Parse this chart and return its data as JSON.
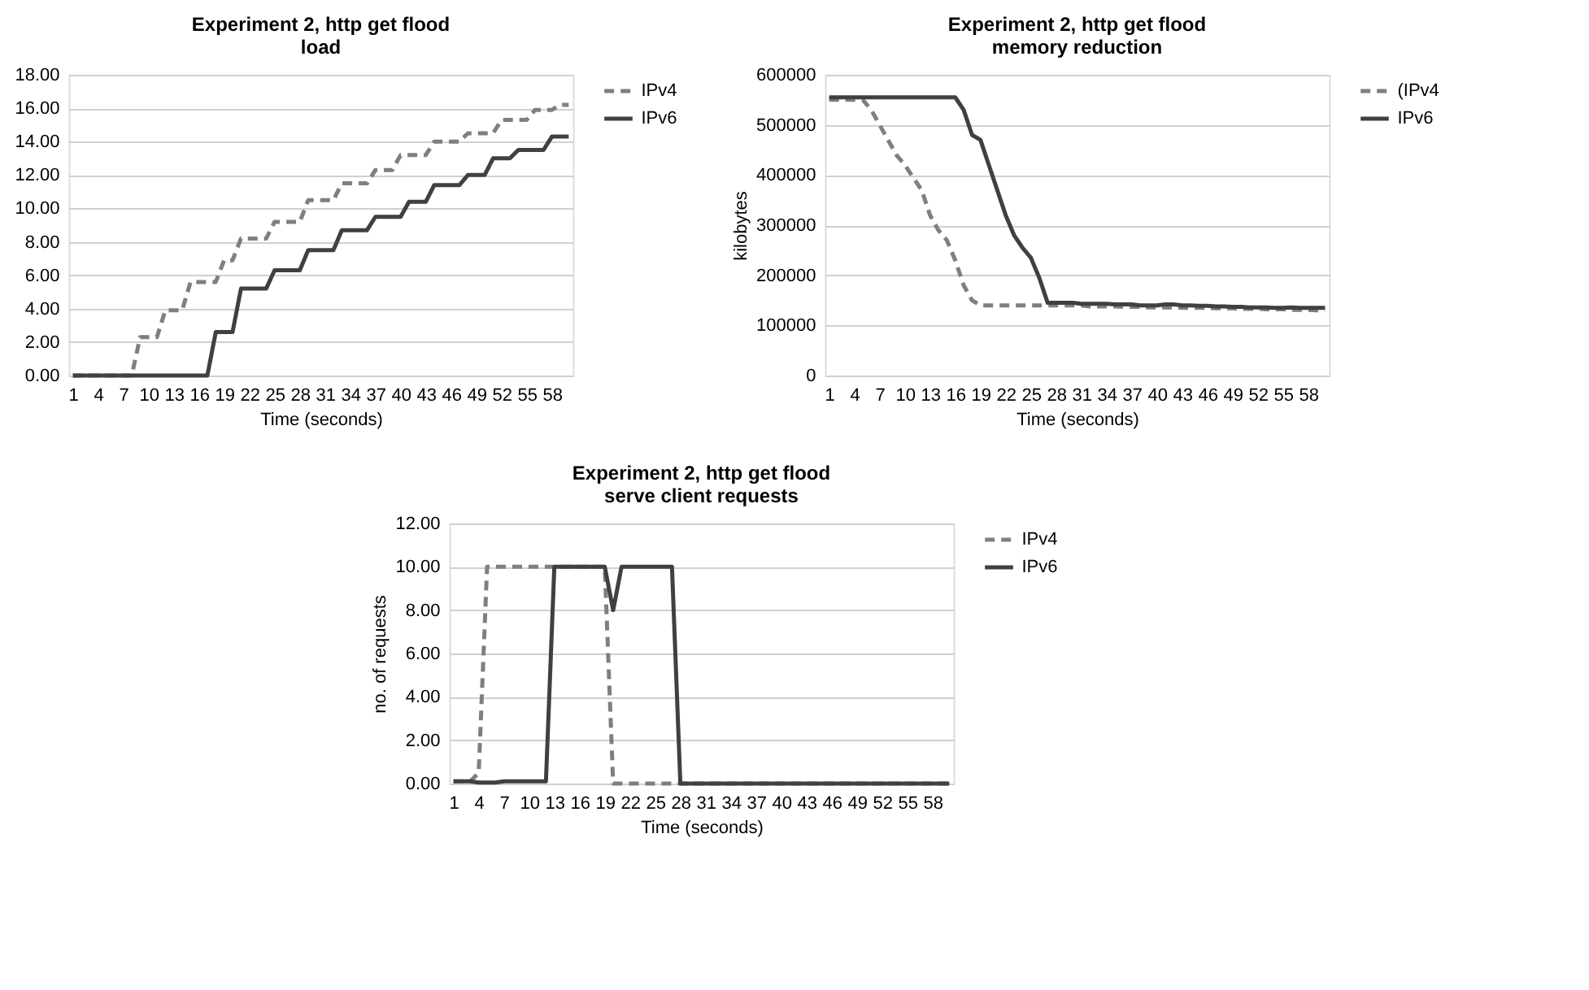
{
  "chart_data": [
    {
      "type": "line",
      "title": "Experiment 2, http get flood\nload",
      "xlabel": "Time (seconds)",
      "categories": [
        "1",
        null,
        null,
        "4",
        null,
        null,
        "7",
        null,
        null,
        "10",
        null,
        null,
        "13",
        null,
        null,
        "16",
        null,
        null,
        "19",
        null,
        null,
        "22",
        null,
        null,
        "25",
        null,
        null,
        "28",
        null,
        null,
        "31",
        null,
        null,
        "34",
        null,
        null,
        "37",
        null,
        null,
        "40",
        null,
        null,
        "43",
        null,
        null,
        "46",
        null,
        null,
        "49",
        null,
        null,
        "52",
        null,
        null,
        "55",
        null,
        null,
        "58",
        null,
        null
      ],
      "series": [
        {
          "name": "IPv4",
          "color": "#7f7f7f",
          "line_style": "dashed",
          "values": [
            0,
            0,
            0,
            0,
            0,
            0,
            0,
            0,
            2.3,
            2.3,
            2.3,
            3.9,
            3.9,
            3.9,
            5.6,
            5.6,
            5.6,
            5.6,
            6.9,
            6.9,
            8.2,
            8.2,
            8.2,
            8.2,
            9.2,
            9.2,
            9.2,
            9.2,
            10.5,
            10.5,
            10.5,
            10.5,
            11.5,
            11.5,
            11.5,
            11.5,
            12.3,
            12.3,
            12.3,
            13.2,
            13.2,
            13.2,
            13.2,
            14.0,
            14.0,
            14.0,
            14.0,
            14.5,
            14.5,
            14.5,
            14.5,
            15.3,
            15.3,
            15.3,
            15.3,
            15.9,
            15.9,
            15.9,
            16.2,
            16.2
          ]
        },
        {
          "name": "IPv6",
          "color": "#404040",
          "line_style": "solid",
          "values": [
            0,
            0,
            0,
            0,
            0,
            0,
            0,
            0,
            0,
            0,
            0,
            0,
            0,
            0,
            0,
            0,
            0,
            2.6,
            2.6,
            2.6,
            5.2,
            5.2,
            5.2,
            5.2,
            6.3,
            6.3,
            6.3,
            6.3,
            7.5,
            7.5,
            7.5,
            7.5,
            8.7,
            8.7,
            8.7,
            8.7,
            9.5,
            9.5,
            9.5,
            9.5,
            10.4,
            10.4,
            10.4,
            11.4,
            11.4,
            11.4,
            11.4,
            12.0,
            12.0,
            12.0,
            13.0,
            13.0,
            13.0,
            13.5,
            13.5,
            13.5,
            13.5,
            14.3,
            14.3,
            14.3
          ]
        }
      ],
      "ylim": [
        0,
        18
      ],
      "yticks": [
        {
          "value": 0,
          "label": "0.00"
        },
        {
          "value": 2,
          "label": "2.00"
        },
        {
          "value": 4,
          "label": "4.00"
        },
        {
          "value": 6,
          "label": "6.00"
        },
        {
          "value": 8,
          "label": "8.00"
        },
        {
          "value": 10,
          "label": "10.00"
        },
        {
          "value": 12,
          "label": "12.00"
        },
        {
          "value": 14,
          "label": "14.00"
        },
        {
          "value": 16,
          "label": "16.00"
        },
        {
          "value": 18,
          "label": "18.00"
        }
      ],
      "grid": "y",
      "legend": "right"
    },
    {
      "type": "line",
      "title": "Experiment 2, http get flood\nmemory reduction",
      "xlabel": "Time (seconds)",
      "ylabel": "kilobytes",
      "categories": [
        "1",
        null,
        null,
        "4",
        null,
        null,
        "7",
        null,
        null,
        "10",
        null,
        null,
        "13",
        null,
        null,
        "16",
        null,
        null,
        "19",
        null,
        null,
        "22",
        null,
        null,
        "25",
        null,
        null,
        "28",
        null,
        null,
        "31",
        null,
        null,
        "34",
        null,
        null,
        "37",
        null,
        null,
        "40",
        null,
        null,
        "43",
        null,
        null,
        "46",
        null,
        null,
        "49",
        null,
        null,
        "52",
        null,
        null,
        "55",
        null,
        null,
        "58",
        null,
        null
      ],
      "series": [
        {
          "name": "(IPv4",
          "color": "#7f7f7f",
          "line_style": "dashed",
          "values": [
            550000,
            550000,
            550000,
            550000,
            550000,
            530000,
            500000,
            470000,
            440000,
            420000,
            395000,
            370000,
            320000,
            290000,
            270000,
            230000,
            180000,
            150000,
            140000,
            140000,
            140000,
            140000,
            140000,
            140000,
            140000,
            140000,
            140000,
            140000,
            140000,
            140000,
            140000,
            138000,
            138000,
            138000,
            138000,
            137000,
            137000,
            137000,
            136000,
            136000,
            136000,
            136000,
            135000,
            135000,
            135000,
            135000,
            134000,
            134000,
            134000,
            133000,
            133000,
            133000,
            132000,
            132000,
            132000,
            131000,
            131000,
            131000,
            130000,
            130000
          ]
        },
        {
          "name": "IPv6",
          "color": "#404040",
          "line_style": "solid",
          "values": [
            555000,
            555000,
            555000,
            555000,
            555000,
            555000,
            555000,
            555000,
            555000,
            555000,
            555000,
            555000,
            555000,
            555000,
            555000,
            555000,
            530000,
            480000,
            470000,
            420000,
            370000,
            320000,
            280000,
            255000,
            235000,
            195000,
            145000,
            145000,
            145000,
            145000,
            143000,
            143000,
            143000,
            143000,
            142000,
            142000,
            142000,
            140000,
            140000,
            140000,
            142000,
            142000,
            140000,
            140000,
            139000,
            139000,
            138000,
            138000,
            137000,
            137000,
            136000,
            136000,
            136000,
            135000,
            135000,
            136000,
            135000,
            135000,
            135000,
            135000
          ]
        }
      ],
      "ylim": [
        0,
        600000
      ],
      "yticks": [
        0,
        100000,
        200000,
        300000,
        400000,
        500000,
        600000
      ],
      "grid": "y",
      "legend": "right"
    },
    {
      "type": "line",
      "title": "Experiment 2, http get flood\nserve client requests",
      "xlabel": "Time (seconds)",
      "ylabel": "no. of requests",
      "categories": [
        "1",
        null,
        null,
        "4",
        null,
        null,
        "7",
        null,
        null,
        "10",
        null,
        null,
        "13",
        null,
        null,
        "16",
        null,
        null,
        "19",
        null,
        null,
        "22",
        null,
        null,
        "25",
        null,
        null,
        "28",
        null,
        null,
        "31",
        null,
        null,
        "34",
        null,
        null,
        "37",
        null,
        null,
        "40",
        null,
        null,
        "43",
        null,
        null,
        "46",
        null,
        null,
        "49",
        null,
        null,
        "52",
        null,
        null,
        "55",
        null,
        null,
        "58",
        null,
        null
      ],
      "series": [
        {
          "name": "IPv4",
          "color": "#7f7f7f",
          "line_style": "dashed",
          "values": [
            0.1,
            0.1,
            0.1,
            0.5,
            10,
            10,
            10,
            10,
            10,
            10,
            10,
            10,
            10,
            10,
            10,
            10,
            10,
            10,
            10,
            0,
            0,
            0,
            0,
            0,
            0,
            0,
            0,
            0,
            0,
            0,
            0,
            0,
            0,
            0,
            0,
            0,
            0,
            0,
            0,
            0,
            0,
            0,
            0,
            0,
            0,
            0,
            0,
            0,
            0,
            0,
            0,
            0,
            0,
            0,
            0,
            0,
            0,
            0,
            0,
            0
          ]
        },
        {
          "name": "IPv6",
          "color": "#404040",
          "line_style": "solid",
          "values": [
            0.1,
            0.1,
            0.1,
            0.05,
            0.05,
            0.05,
            0.1,
            0.1,
            0.1,
            0.1,
            0.1,
            0.1,
            10,
            10,
            10,
            10,
            10,
            10,
            10,
            8,
            10,
            10,
            10,
            10,
            10,
            10,
            10,
            0,
            0,
            0,
            0,
            0,
            0,
            0,
            0,
            0,
            0,
            0,
            0,
            0,
            0,
            0,
            0,
            0,
            0,
            0,
            0,
            0,
            0,
            0,
            0,
            0,
            0,
            0,
            0,
            0,
            0,
            0,
            0,
            0
          ]
        }
      ],
      "ylim": [
        0,
        12
      ],
      "yticks": [
        {
          "value": 0,
          "label": "0.00"
        },
        {
          "value": 2,
          "label": "2.00"
        },
        {
          "value": 4,
          "label": "4.00"
        },
        {
          "value": 6,
          "label": "6.00"
        },
        {
          "value": 8,
          "label": "8.00"
        },
        {
          "value": 10,
          "label": "10.00"
        },
        {
          "value": 12,
          "label": "12.00"
        }
      ],
      "grid": "y",
      "legend": "right"
    }
  ]
}
